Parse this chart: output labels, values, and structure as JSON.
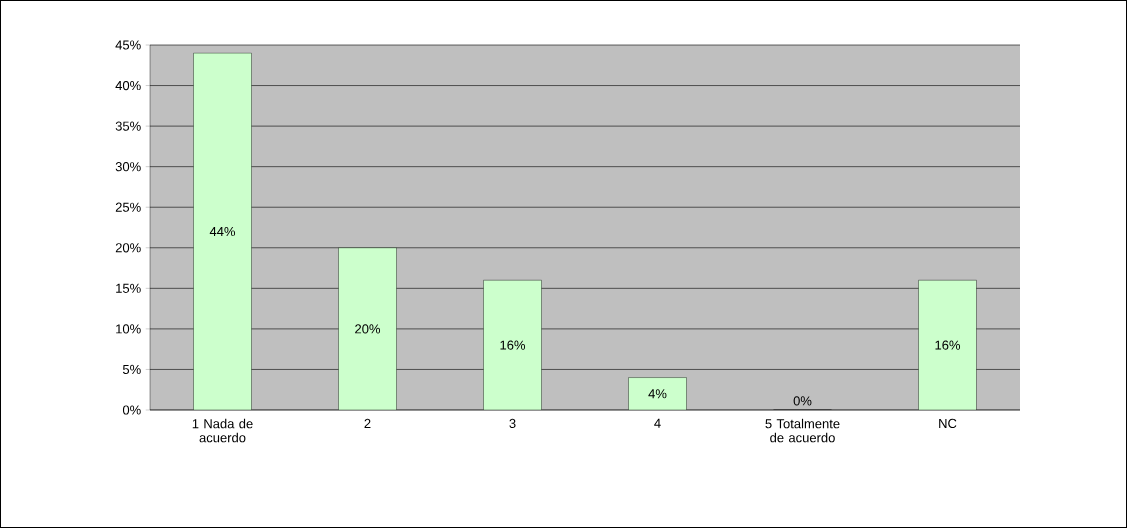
{
  "chart_data": {
    "type": "bar",
    "categories": [
      "1 Nada de acuerdo",
      "2",
      "3",
      "4",
      "5 Totalmente de acuerdo",
      "NC"
    ],
    "values": [
      44,
      20,
      16,
      4,
      0,
      16
    ],
    "value_labels": [
      "44%",
      "20%",
      "16%",
      "4%",
      "0%",
      "16%"
    ],
    "color": "#ccffcc",
    "ylim": [
      0,
      45
    ],
    "yticks": [
      {
        "value": 0,
        "label": "0%"
      },
      {
        "value": 5,
        "label": "5%"
      },
      {
        "value": 10,
        "label": "10%"
      },
      {
        "value": 15,
        "label": "15%"
      },
      {
        "value": 20,
        "label": "20%"
      },
      {
        "value": 25,
        "label": "25%"
      },
      {
        "value": 30,
        "label": "30%"
      },
      {
        "value": 35,
        "label": "35%"
      },
      {
        "value": 40,
        "label": "40%"
      },
      {
        "value": 45,
        "label": "45%"
      }
    ],
    "grid": "y"
  }
}
